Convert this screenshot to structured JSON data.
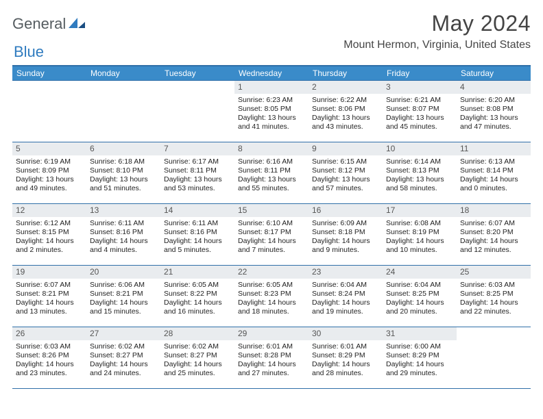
{
  "logo": {
    "part1": "General",
    "part2": "Blue"
  },
  "title": "May 2024",
  "location": "Mount Hermon, Virginia, United States",
  "colors": {
    "header_border": "#2f6fa8",
    "dow_bg": "#3a8bc9",
    "dow_text": "#ffffff",
    "daynum_bg": "#e9ecef",
    "text": "#222222"
  },
  "dow": [
    "Sunday",
    "Monday",
    "Tuesday",
    "Wednesday",
    "Thursday",
    "Friday",
    "Saturday"
  ],
  "weeks": [
    [
      {
        "n": "",
        "sr": "",
        "ss": "",
        "dl": ""
      },
      {
        "n": "",
        "sr": "",
        "ss": "",
        "dl": ""
      },
      {
        "n": "",
        "sr": "",
        "ss": "",
        "dl": ""
      },
      {
        "n": "1",
        "sr": "Sunrise: 6:23 AM",
        "ss": "Sunset: 8:05 PM",
        "dl": "Daylight: 13 hours and 41 minutes."
      },
      {
        "n": "2",
        "sr": "Sunrise: 6:22 AM",
        "ss": "Sunset: 8:06 PM",
        "dl": "Daylight: 13 hours and 43 minutes."
      },
      {
        "n": "3",
        "sr": "Sunrise: 6:21 AM",
        "ss": "Sunset: 8:07 PM",
        "dl": "Daylight: 13 hours and 45 minutes."
      },
      {
        "n": "4",
        "sr": "Sunrise: 6:20 AM",
        "ss": "Sunset: 8:08 PM",
        "dl": "Daylight: 13 hours and 47 minutes."
      }
    ],
    [
      {
        "n": "5",
        "sr": "Sunrise: 6:19 AM",
        "ss": "Sunset: 8:09 PM",
        "dl": "Daylight: 13 hours and 49 minutes."
      },
      {
        "n": "6",
        "sr": "Sunrise: 6:18 AM",
        "ss": "Sunset: 8:10 PM",
        "dl": "Daylight: 13 hours and 51 minutes."
      },
      {
        "n": "7",
        "sr": "Sunrise: 6:17 AM",
        "ss": "Sunset: 8:11 PM",
        "dl": "Daylight: 13 hours and 53 minutes."
      },
      {
        "n": "8",
        "sr": "Sunrise: 6:16 AM",
        "ss": "Sunset: 8:11 PM",
        "dl": "Daylight: 13 hours and 55 minutes."
      },
      {
        "n": "9",
        "sr": "Sunrise: 6:15 AM",
        "ss": "Sunset: 8:12 PM",
        "dl": "Daylight: 13 hours and 57 minutes."
      },
      {
        "n": "10",
        "sr": "Sunrise: 6:14 AM",
        "ss": "Sunset: 8:13 PM",
        "dl": "Daylight: 13 hours and 58 minutes."
      },
      {
        "n": "11",
        "sr": "Sunrise: 6:13 AM",
        "ss": "Sunset: 8:14 PM",
        "dl": "Daylight: 14 hours and 0 minutes."
      }
    ],
    [
      {
        "n": "12",
        "sr": "Sunrise: 6:12 AM",
        "ss": "Sunset: 8:15 PM",
        "dl": "Daylight: 14 hours and 2 minutes."
      },
      {
        "n": "13",
        "sr": "Sunrise: 6:11 AM",
        "ss": "Sunset: 8:16 PM",
        "dl": "Daylight: 14 hours and 4 minutes."
      },
      {
        "n": "14",
        "sr": "Sunrise: 6:11 AM",
        "ss": "Sunset: 8:16 PM",
        "dl": "Daylight: 14 hours and 5 minutes."
      },
      {
        "n": "15",
        "sr": "Sunrise: 6:10 AM",
        "ss": "Sunset: 8:17 PM",
        "dl": "Daylight: 14 hours and 7 minutes."
      },
      {
        "n": "16",
        "sr": "Sunrise: 6:09 AM",
        "ss": "Sunset: 8:18 PM",
        "dl": "Daylight: 14 hours and 9 minutes."
      },
      {
        "n": "17",
        "sr": "Sunrise: 6:08 AM",
        "ss": "Sunset: 8:19 PM",
        "dl": "Daylight: 14 hours and 10 minutes."
      },
      {
        "n": "18",
        "sr": "Sunrise: 6:07 AM",
        "ss": "Sunset: 8:20 PM",
        "dl": "Daylight: 14 hours and 12 minutes."
      }
    ],
    [
      {
        "n": "19",
        "sr": "Sunrise: 6:07 AM",
        "ss": "Sunset: 8:21 PM",
        "dl": "Daylight: 14 hours and 13 minutes."
      },
      {
        "n": "20",
        "sr": "Sunrise: 6:06 AM",
        "ss": "Sunset: 8:21 PM",
        "dl": "Daylight: 14 hours and 15 minutes."
      },
      {
        "n": "21",
        "sr": "Sunrise: 6:05 AM",
        "ss": "Sunset: 8:22 PM",
        "dl": "Daylight: 14 hours and 16 minutes."
      },
      {
        "n": "22",
        "sr": "Sunrise: 6:05 AM",
        "ss": "Sunset: 8:23 PM",
        "dl": "Daylight: 14 hours and 18 minutes."
      },
      {
        "n": "23",
        "sr": "Sunrise: 6:04 AM",
        "ss": "Sunset: 8:24 PM",
        "dl": "Daylight: 14 hours and 19 minutes."
      },
      {
        "n": "24",
        "sr": "Sunrise: 6:04 AM",
        "ss": "Sunset: 8:25 PM",
        "dl": "Daylight: 14 hours and 20 minutes."
      },
      {
        "n": "25",
        "sr": "Sunrise: 6:03 AM",
        "ss": "Sunset: 8:25 PM",
        "dl": "Daylight: 14 hours and 22 minutes."
      }
    ],
    [
      {
        "n": "26",
        "sr": "Sunrise: 6:03 AM",
        "ss": "Sunset: 8:26 PM",
        "dl": "Daylight: 14 hours and 23 minutes."
      },
      {
        "n": "27",
        "sr": "Sunrise: 6:02 AM",
        "ss": "Sunset: 8:27 PM",
        "dl": "Daylight: 14 hours and 24 minutes."
      },
      {
        "n": "28",
        "sr": "Sunrise: 6:02 AM",
        "ss": "Sunset: 8:27 PM",
        "dl": "Daylight: 14 hours and 25 minutes."
      },
      {
        "n": "29",
        "sr": "Sunrise: 6:01 AM",
        "ss": "Sunset: 8:28 PM",
        "dl": "Daylight: 14 hours and 27 minutes."
      },
      {
        "n": "30",
        "sr": "Sunrise: 6:01 AM",
        "ss": "Sunset: 8:29 PM",
        "dl": "Daylight: 14 hours and 28 minutes."
      },
      {
        "n": "31",
        "sr": "Sunrise: 6:00 AM",
        "ss": "Sunset: 8:29 PM",
        "dl": "Daylight: 14 hours and 29 minutes."
      },
      {
        "n": "",
        "sr": "",
        "ss": "",
        "dl": ""
      }
    ]
  ]
}
